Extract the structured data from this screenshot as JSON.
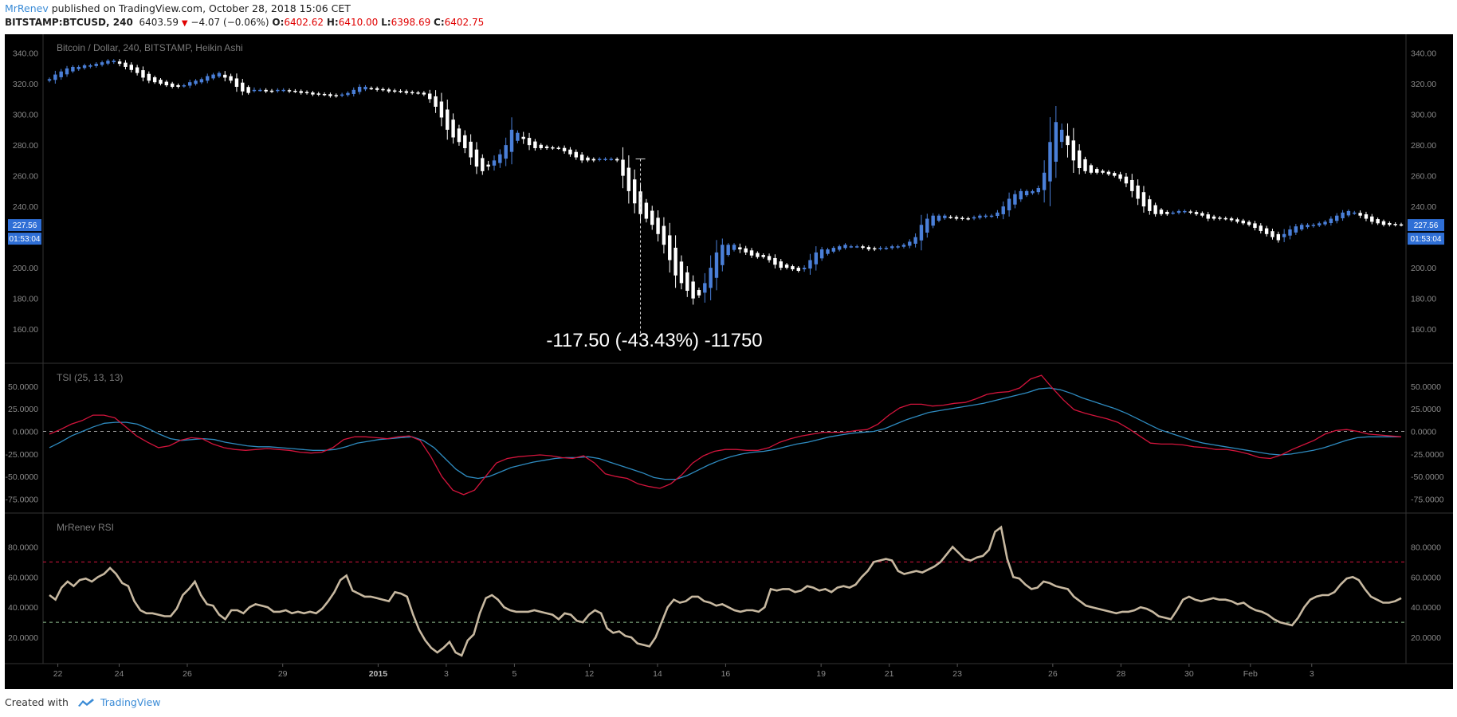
{
  "header": {
    "author": "MrRenev",
    "published_text": "published on TradingView.com, October 28, 2018 15:06 CET",
    "symbol": "BITSTAMP:BTCUSD, 240",
    "last": "6403.59",
    "change": "−4.07 (−0.06%)",
    "o_label": "O:",
    "o_value": "6402.62",
    "h_label": "H:",
    "h_value": "6410.00",
    "l_label": "L:",
    "l_value": "6398.69",
    "c_label": "C:",
    "c_value": "6402.75"
  },
  "footer": {
    "created_with": "Created with",
    "brand": "TradingView"
  },
  "colors": {
    "background": "#000000",
    "bull_candle": "#4a7fd8",
    "bear_candle": "#ffffff",
    "tsi_line": "#2e8bc0",
    "tsi_signal": "#d3143c",
    "rsi_line": "#c7b8a0",
    "overbought_line": "#d3143c",
    "oversold_line": "#8fbf8f",
    "price_tag": "#2f6fd6"
  },
  "chart_data": [
    {
      "type": "candlestick",
      "title": "Bitcoin / Dollar, 240, BITSTAMP, Heikin Ashi",
      "ylim": [
        145,
        345
      ],
      "yticks": [
        "340.00",
        "320.00",
        "300.00",
        "280.00",
        "260.00",
        "240.00",
        "220.00",
        "200.00",
        "180.00",
        "160.00"
      ],
      "last_price_tag": "227.56",
      "countdown_tag": "01:53:04",
      "measurement": "-117.50 (-43.43%) -11750",
      "closes": [
        323,
        326,
        328,
        330,
        331,
        331,
        332,
        332,
        333,
        334,
        335,
        335,
        333,
        331,
        329,
        327,
        324,
        322,
        321,
        320,
        319,
        318,
        318,
        319,
        321,
        322,
        323,
        325,
        326,
        327,
        324,
        322,
        318,
        315,
        314,
        316,
        316,
        315,
        315,
        316,
        316,
        315,
        315,
        314,
        314,
        313,
        313,
        313,
        312,
        312,
        313,
        314,
        316,
        318,
        318,
        317,
        316,
        316,
        315,
        315,
        315,
        314,
        314,
        314,
        313,
        310,
        305,
        298,
        290,
        285,
        282,
        278,
        272,
        266,
        263,
        266,
        270,
        274,
        280,
        290,
        288,
        284,
        280,
        278,
        278,
        278,
        278,
        278,
        276,
        274,
        272,
        270,
        270,
        270,
        271,
        271,
        271,
        270,
        260,
        250,
        242,
        235,
        232,
        228,
        222,
        215,
        205,
        195,
        190,
        185,
        180,
        182,
        190,
        200,
        210,
        215,
        215,
        215,
        212,
        210,
        208,
        207,
        207,
        205,
        202,
        200,
        200,
        199,
        198,
        200,
        205,
        210,
        212,
        212,
        213,
        214,
        215,
        214,
        214,
        213,
        212,
        212,
        213,
        213,
        214,
        214,
        215,
        217,
        220,
        228,
        232,
        234,
        234,
        234,
        233,
        232,
        232,
        232,
        233,
        234,
        234,
        234,
        236,
        240,
        245,
        248,
        250,
        250,
        250,
        252,
        262,
        282,
        295,
        290,
        280,
        270,
        265,
        263,
        262,
        262,
        262,
        261,
        260,
        258,
        255,
        250,
        245,
        240,
        237,
        235,
        235,
        235,
        236,
        237,
        237,
        236,
        235,
        234,
        232,
        232,
        232,
        232,
        231,
        230,
        229,
        228,
        226,
        224,
        222,
        220,
        218,
        222,
        225,
        227,
        228,
        228,
        228,
        229,
        230,
        232,
        234,
        236,
        237,
        236,
        234,
        232,
        230,
        229,
        228,
        228,
        228,
        228
      ]
    },
    {
      "type": "line",
      "title": "TSI (25, 13, 13)",
      "ylim": [
        -78,
        63
      ],
      "yticks": [
        "50.0000",
        "25.0000",
        "0.0000",
        "-25.0000",
        "-50.0000",
        "-75.0000"
      ],
      "zero_line": 0,
      "series": [
        {
          "values": [
            -3,
            2,
            8,
            12,
            18,
            18,
            15,
            5,
            -5,
            -12,
            -18,
            -16,
            -10,
            -7,
            -8,
            -14,
            -18,
            -20,
            -21,
            -20,
            -19,
            -20,
            -21,
            -23,
            -24,
            -23,
            -18,
            -9,
            -6,
            -6,
            -7,
            -8,
            -6,
            -5,
            -10,
            -28,
            -50,
            -65,
            -70,
            -65,
            -50,
            -35,
            -30,
            -28,
            -27,
            -26,
            -27,
            -29,
            -30,
            -27,
            -35,
            -47,
            -50,
            -52,
            -58,
            -61,
            -63,
            -58,
            -48,
            -35,
            -27,
            -22,
            -20,
            -20,
            -21,
            -21,
            -18,
            -12,
            -8,
            -5,
            -3,
            -1,
            -1,
            -1,
            1,
            2,
            8,
            18,
            26,
            30,
            30,
            28,
            29,
            31,
            32,
            36,
            41,
            43,
            44,
            48,
            58,
            62,
            48,
            35,
            24,
            20,
            17,
            14,
            10,
            3,
            -5,
            -13,
            -14,
            -14,
            -15,
            -17,
            -18,
            -20,
            -20,
            -22,
            -25,
            -29,
            -30,
            -26,
            -20,
            -15,
            -10,
            -3,
            1,
            2,
            0,
            -3,
            -4,
            -5,
            -6
          ]
        },
        {
          "values": [
            -18,
            -12,
            -5,
            0,
            5,
            9,
            10,
            10,
            8,
            3,
            -3,
            -8,
            -10,
            -9,
            -8,
            -9,
            -12,
            -14,
            -16,
            -17,
            -17,
            -18,
            -19,
            -20,
            -21,
            -21,
            -20,
            -17,
            -13,
            -11,
            -9,
            -8,
            -7,
            -6,
            -10,
            -18,
            -30,
            -42,
            -50,
            -52,
            -50,
            -45,
            -40,
            -37,
            -34,
            -32,
            -30,
            -29,
            -29,
            -28,
            -30,
            -34,
            -38,
            -42,
            -46,
            -51,
            -53,
            -53,
            -49,
            -43,
            -37,
            -32,
            -28,
            -25,
            -23,
            -22,
            -20,
            -17,
            -14,
            -12,
            -9,
            -6,
            -4,
            -2,
            -1,
            0,
            3,
            8,
            13,
            17,
            21,
            23,
            25,
            27,
            29,
            31,
            34,
            37,
            40,
            43,
            47,
            48,
            46,
            42,
            37,
            33,
            29,
            25,
            20,
            14,
            8,
            2,
            -2,
            -6,
            -10,
            -13,
            -15,
            -17,
            -19,
            -21,
            -23,
            -25,
            -26,
            -25,
            -23,
            -21,
            -18,
            -14,
            -10,
            -7,
            -6,
            -6,
            -6,
            -6
          ]
        }
      ]
    },
    {
      "type": "line",
      "title": "MrRenev RSI",
      "ylim": [
        10,
        95
      ],
      "yticks": [
        "80.0000",
        "60.0000",
        "40.0000",
        "20.0000"
      ],
      "overbought": 70,
      "oversold": 30,
      "series": [
        {
          "values": [
            48,
            45,
            53,
            57,
            54,
            58,
            59,
            57,
            60,
            62,
            66,
            62,
            56,
            54,
            44,
            38,
            36,
            36,
            35,
            34,
            34,
            39,
            48,
            52,
            57,
            48,
            42,
            41,
            35,
            32,
            38,
            38,
            36,
            40,
            42,
            41,
            40,
            37,
            37,
            38,
            36,
            37,
            36,
            37,
            36,
            39,
            44,
            50,
            58,
            61,
            51,
            49,
            47,
            47,
            46,
            45,
            44,
            50,
            49,
            47,
            35,
            25,
            18,
            13,
            10,
            13,
            17,
            10,
            8,
            18,
            22,
            36,
            46,
            48,
            45,
            40,
            38,
            37,
            37,
            37,
            38,
            37,
            36,
            35,
            32,
            36,
            35,
            31,
            30,
            35,
            38,
            36,
            26,
            23,
            24,
            21,
            20,
            16,
            15,
            14,
            20,
            30,
            40,
            45,
            43,
            44,
            47,
            47,
            44,
            43,
            41,
            42,
            40,
            38,
            37,
            38,
            38,
            37,
            40,
            52,
            51,
            52,
            52,
            50,
            51,
            54,
            53,
            51,
            52,
            50,
            53,
            54,
            53,
            55,
            60,
            64,
            70,
            71,
            72,
            71,
            64,
            62,
            63,
            64,
            63,
            65,
            67,
            70,
            75,
            80,
            76,
            72,
            71,
            73,
            74,
            78,
            90,
            93,
            72,
            60,
            59,
            55,
            52,
            53,
            57,
            56,
            54,
            53,
            52,
            47,
            44,
            41,
            40,
            39,
            38,
            37,
            36,
            37,
            37,
            38,
            40,
            39,
            37,
            34,
            33,
            32,
            38,
            45,
            47,
            45,
            44,
            45,
            46,
            45,
            45,
            44,
            42,
            43,
            40,
            38,
            37,
            35,
            32,
            30,
            29,
            28,
            33,
            40,
            45,
            47,
            48,
            48,
            50,
            55,
            59,
            60,
            58,
            52,
            47,
            45,
            43,
            43,
            44,
            46
          ]
        }
      ]
    }
  ],
  "x_axis": {
    "ticks": [
      "22",
      "24",
      "26",
      "29",
      "2015",
      "3",
      "5",
      "12",
      "14",
      "16",
      "19",
      "21",
      "23",
      "26",
      "28",
      "30",
      "Feb",
      "3"
    ]
  }
}
